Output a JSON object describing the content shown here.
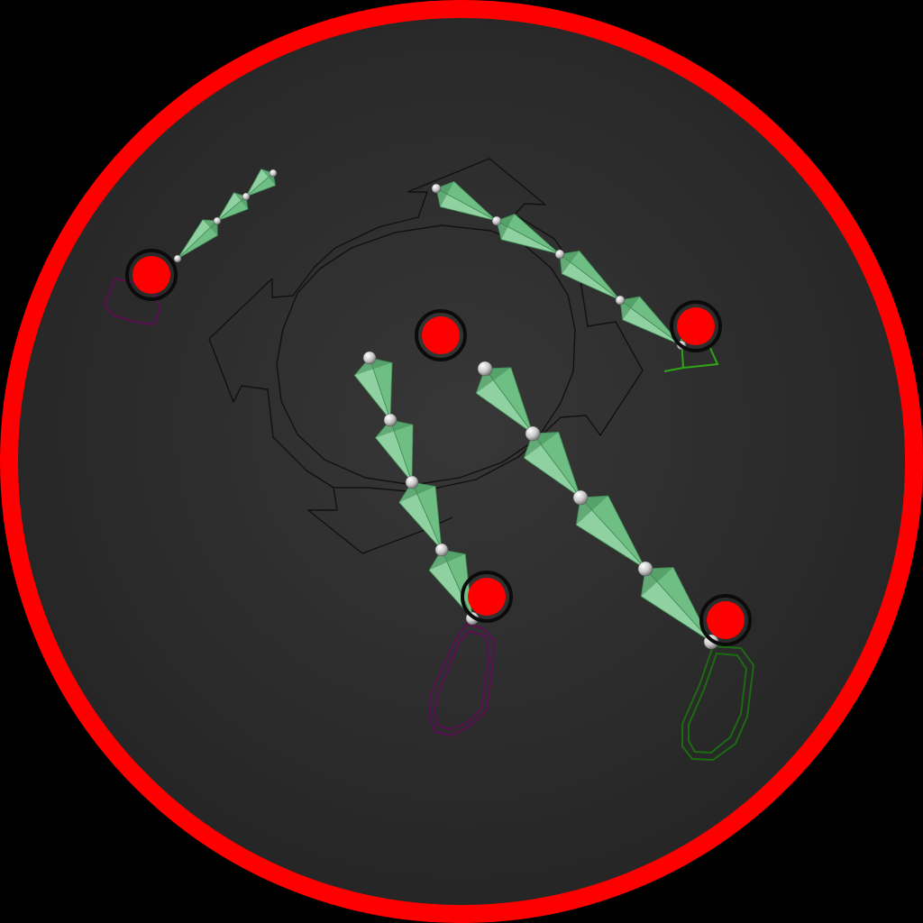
{
  "viewport": {
    "background": "#000000",
    "disc_fill_center": "#373737",
    "disc_fill_edge": "#262626",
    "rim_color": "#ff0000"
  },
  "colors": {
    "bone_light": "#8fd1a0",
    "bone_mid": "#6fbf84",
    "bone_dark": "#3f8a55",
    "joint": "#d9d9d9",
    "control_red": "#ff0000",
    "control_ring": "#0b0b0b",
    "outline": "#111111",
    "purple_shape": "#5a0f52",
    "green_shape": "#1c6b12",
    "green_bright": "#2ea516"
  },
  "icons": {
    "root_control": "circle-arrow-ring-icon",
    "ik_handle": "red-dot-icon",
    "joint": "sphere-icon"
  }
}
